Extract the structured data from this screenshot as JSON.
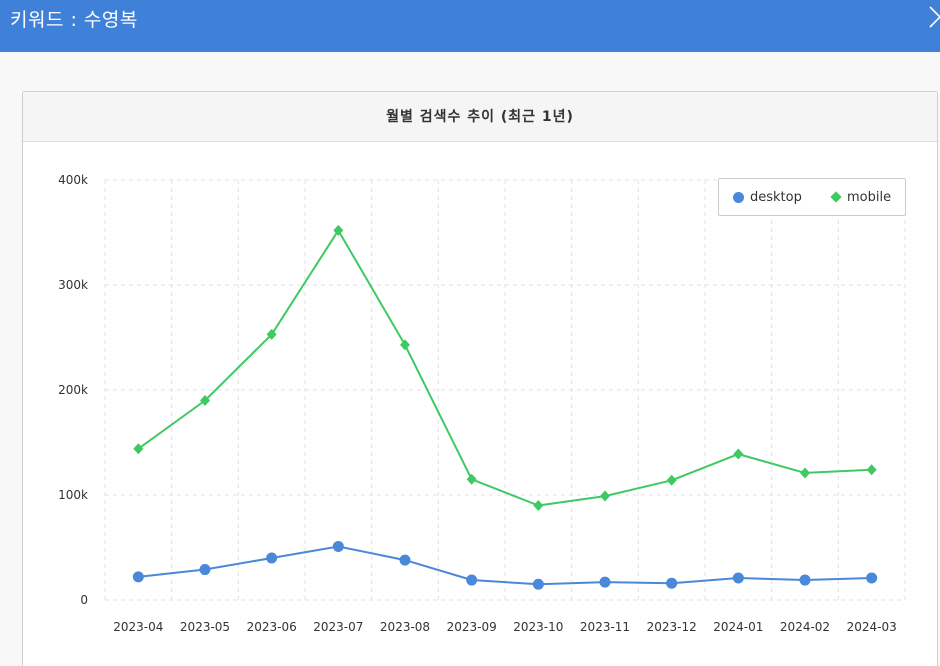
{
  "header": {
    "title": "키워드 : 수영복",
    "close_icon": "close-icon"
  },
  "colors": {
    "header_bg": "#3f81d9",
    "desktop": "#4a88d9",
    "mobile": "#3ec963"
  },
  "chart_data": {
    "type": "line",
    "title": "월별 검색수 추이 (최근 1년)",
    "xlabel": "",
    "ylabel": "",
    "categories": [
      "2023-04",
      "2023-05",
      "2023-06",
      "2023-07",
      "2023-08",
      "2023-09",
      "2023-10",
      "2023-11",
      "2023-12",
      "2024-01",
      "2024-02",
      "2024-03"
    ],
    "series": [
      {
        "name": "desktop",
        "color": "#4a88d9",
        "marker": "circle",
        "values": [
          22000,
          29000,
          40000,
          51000,
          38000,
          19000,
          15000,
          17000,
          16000,
          21000,
          19000,
          21000
        ]
      },
      {
        "name": "mobile",
        "color": "#3ec963",
        "marker": "diamond",
        "values": [
          144000,
          190000,
          253000,
          352000,
          243000,
          115000,
          90000,
          99000,
          114000,
          139000,
          121000,
          124000
        ]
      }
    ],
    "ylim": [
      0,
      400000
    ],
    "yticks": [
      0,
      100000,
      200000,
      300000,
      400000
    ],
    "ytick_labels": [
      "0",
      "100k",
      "200k",
      "300k",
      "400k"
    ],
    "grid": true,
    "legend": "top-right"
  }
}
